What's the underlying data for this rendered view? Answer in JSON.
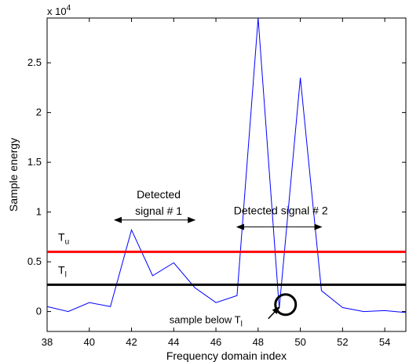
{
  "chart_data": {
    "type": "line",
    "title": "",
    "xlabel": "Frequency domain index",
    "ylabel": "Sample energy",
    "scale_label": {
      "base": "x 10",
      "exponent": "4"
    },
    "xlim": [
      38,
      55
    ],
    "ylim": [
      -0.2,
      2.95
    ],
    "y_multiplier": 10000,
    "grid": false,
    "x_ticks": [
      38,
      40,
      42,
      44,
      46,
      48,
      50,
      52,
      54
    ],
    "y_ticks": [
      0,
      0.5,
      1,
      1.5,
      2,
      2.5
    ],
    "x_tick_labels": [
      "38",
      "40",
      "42",
      "44",
      "46",
      "48",
      "50",
      "52",
      "54"
    ],
    "y_tick_labels": [
      "0",
      "0.5",
      "1",
      "1.5",
      "2",
      "2.5"
    ],
    "series": [
      {
        "color": "#0000ff",
        "x": [
          38,
          39,
          40,
          41,
          42,
          43,
          44,
          45,
          46,
          47,
          48,
          49,
          50,
          51,
          52,
          53,
          54,
          55
        ],
        "y": [
          0.05,
          0.0,
          0.09,
          0.05,
          0.82,
          0.36,
          0.49,
          0.24,
          0.09,
          0.16,
          2.95,
          0.03,
          2.35,
          0.21,
          0.04,
          0.0,
          0.01,
          -0.01
        ]
      }
    ],
    "thresholds": [
      {
        "name": "T",
        "subscript": "u",
        "value": 0.6,
        "color": "#ff0000"
      },
      {
        "name": "T",
        "subscript": "l",
        "value": 0.27,
        "color": "#000000"
      }
    ],
    "annotations": {
      "signal1": {
        "line1": "Detected",
        "line2": "signal # 1",
        "x_from": 41.2,
        "x_to": 45.0,
        "y": 0.92
      },
      "signal2": {
        "text": "Detected signal # 2",
        "x_from": 47.0,
        "x_to": 51.0,
        "y": 0.85
      },
      "sample_below": {
        "text": "sample below T",
        "subscript": "l",
        "circle_x": 49.3,
        "circle_y": 0.07
      }
    }
  }
}
